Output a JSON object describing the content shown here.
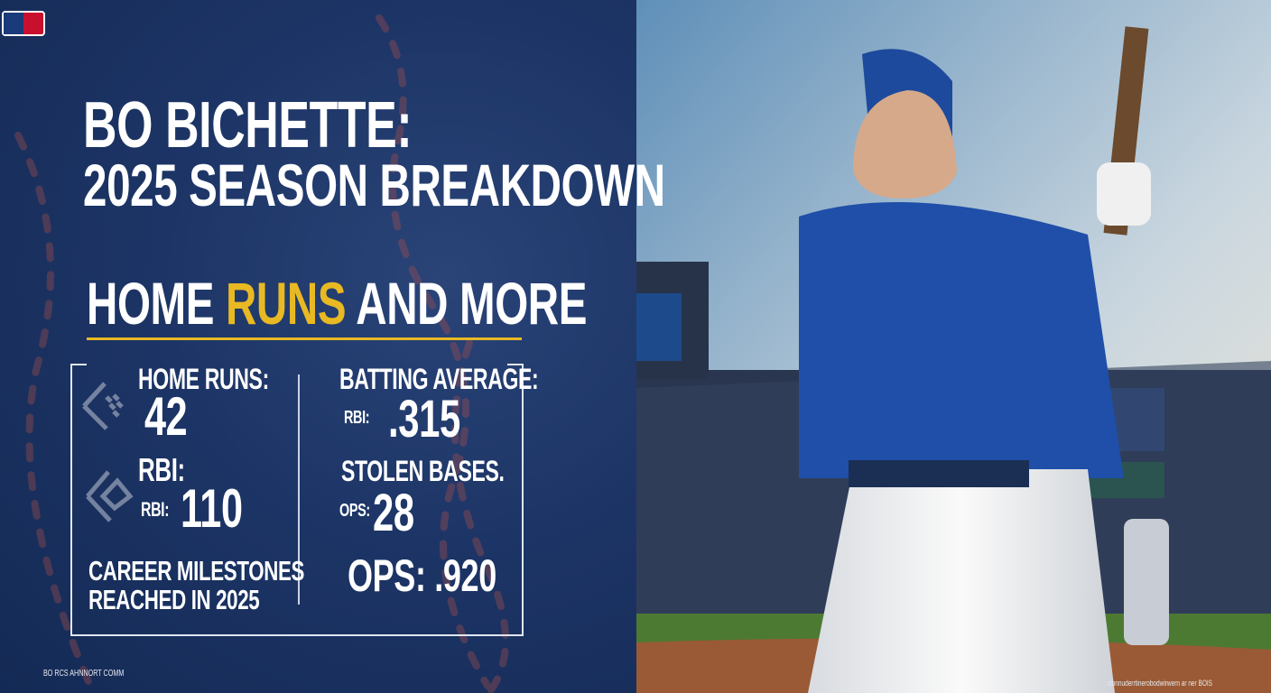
{
  "brand": {
    "logo": "MLB"
  },
  "title": {
    "line1": "BO BICHETTE:",
    "line2": "2025 SEASON BREAKDOWN"
  },
  "subtitle": {
    "part1": "HOME ",
    "highlight": "RUNS",
    "part2": " AND MORE",
    "highlight_color": "#e8b923"
  },
  "stats": {
    "home_runs": {
      "label": "HOME RUNS:",
      "value": "42"
    },
    "rbi": {
      "label": "RBI:",
      "sub_label": "RBI:",
      "value": "110"
    },
    "milestones": {
      "line1": "CAREER MILESTONES",
      "line2": "REACHED IN 2025"
    },
    "batting_average": {
      "label": "BATTING AVERAGE:",
      "sub_label": "RBI:",
      "value": ".315"
    },
    "stolen_bases": {
      "label": "STOLEN BASES.",
      "sub_label": "OPS:",
      "value": "28"
    },
    "ops": {
      "label": "OPS:",
      "value": ".920"
    }
  },
  "footer": {
    "left": "BO RCS AHNNORT COMM",
    "right": "clnnnuderrtinerobodwirwern ar ner BOIS"
  },
  "colors": {
    "panel": "#1d3566",
    "accent": "#e8b923",
    "jersey": "#1f4fa8"
  }
}
